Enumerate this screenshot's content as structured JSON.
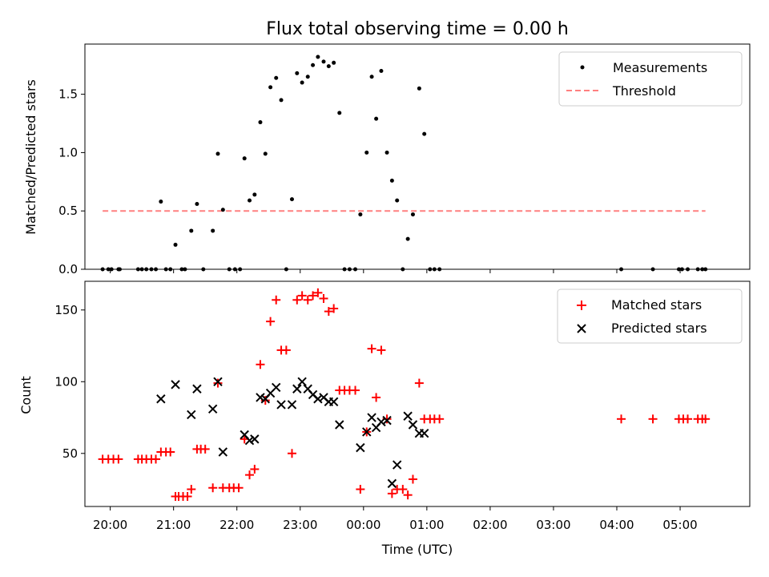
{
  "chart_data": [
    {
      "type": "scatter",
      "panel": "top",
      "title": "Flux total observing time = 0.00 h",
      "xlabel": "",
      "ylabel": "Matched/Predicted stars",
      "xlim": [
        19.6,
        30.1
      ],
      "ylim": [
        0,
        1.93
      ],
      "yticks": [
        0.0,
        0.5,
        1.0,
        1.5
      ],
      "ytick_labels": [
        "0.0",
        "0.5",
        "1.0",
        "1.5"
      ],
      "legend": {
        "placement": "top-right",
        "entries": [
          "Measurements",
          "Threshold"
        ]
      },
      "threshold": {
        "name": "Threshold",
        "value": 0.5,
        "x_range": [
          19.88,
          29.4
        ],
        "color": "#ff8080"
      },
      "series": [
        {
          "name": "Measurements",
          "color": "#000000",
          "points": [
            [
              19.88,
              0
            ],
            [
              19.97,
              0
            ],
            [
              20.02,
              0
            ],
            [
              20.13,
              0
            ],
            [
              20.15,
              0
            ],
            [
              20.44,
              0
            ],
            [
              20.5,
              0
            ],
            [
              20.57,
              0
            ],
            [
              20.65,
              0
            ],
            [
              20.72,
              0
            ],
            [
              20.8,
              0.58
            ],
            [
              20.88,
              0
            ],
            [
              20.95,
              0
            ],
            [
              21.03,
              0.21
            ],
            [
              21.13,
              0
            ],
            [
              21.18,
              0
            ],
            [
              21.28,
              0.33
            ],
            [
              21.37,
              0.56
            ],
            [
              21.47,
              0
            ],
            [
              21.62,
              0.33
            ],
            [
              21.7,
              0.99
            ],
            [
              21.78,
              0.51
            ],
            [
              21.88,
              0
            ],
            [
              21.97,
              0
            ],
            [
              22.05,
              0
            ],
            [
              22.12,
              0.95
            ],
            [
              22.2,
              0.59
            ],
            [
              22.28,
              0.64
            ],
            [
              22.37,
              1.26
            ],
            [
              22.45,
              0.99
            ],
            [
              22.53,
              1.56
            ],
            [
              22.62,
              1.64
            ],
            [
              22.7,
              1.45
            ],
            [
              22.78,
              0
            ],
            [
              22.87,
              0.6
            ],
            [
              22.95,
              1.68
            ],
            [
              23.03,
              1.6
            ],
            [
              23.12,
              1.65
            ],
            [
              23.2,
              1.75
            ],
            [
              23.28,
              1.82
            ],
            [
              23.37,
              1.78
            ],
            [
              23.45,
              1.74
            ],
            [
              23.53,
              1.77
            ],
            [
              23.62,
              1.34
            ],
            [
              23.7,
              0
            ],
            [
              23.78,
              0
            ],
            [
              23.87,
              0
            ],
            [
              23.95,
              0.47
            ],
            [
              24.05,
              1.0
            ],
            [
              24.13,
              1.65
            ],
            [
              24.2,
              1.29
            ],
            [
              24.28,
              1.7
            ],
            [
              24.37,
              1.0
            ],
            [
              24.45,
              0.76
            ],
            [
              24.53,
              0.59
            ],
            [
              24.62,
              0
            ],
            [
              24.7,
              0.26
            ],
            [
              24.78,
              0.47
            ],
            [
              24.88,
              1.55
            ],
            [
              24.96,
              1.16
            ],
            [
              25.05,
              0
            ],
            [
              25.12,
              0
            ],
            [
              25.2,
              0
            ],
            [
              28.07,
              0
            ],
            [
              28.57,
              0
            ],
            [
              28.98,
              0
            ],
            [
              29.03,
              0
            ],
            [
              29.12,
              0
            ],
            [
              29.28,
              0
            ],
            [
              29.35,
              0
            ],
            [
              29.4,
              0
            ]
          ]
        }
      ]
    },
    {
      "type": "scatter",
      "panel": "bottom",
      "title": "",
      "xlabel": "Time (UTC)",
      "ylabel": "Count",
      "xlim": [
        19.6,
        30.1
      ],
      "ylim": [
        13,
        170
      ],
      "yticks": [
        50,
        100,
        150
      ],
      "ytick_labels": [
        "50",
        "100",
        "150"
      ],
      "xticks": [
        20,
        21,
        22,
        23,
        24,
        25,
        26,
        27,
        28,
        29
      ],
      "xtick_labels": [
        "20:00",
        "21:00",
        "22:00",
        "23:00",
        "00:00",
        "01:00",
        "02:00",
        "03:00",
        "04:00",
        "05:00"
      ],
      "legend": {
        "placement": "top-right",
        "entries": [
          "Matched stars",
          "Predicted stars"
        ]
      },
      "series": [
        {
          "name": "Matched stars",
          "marker": "plus",
          "color": "#ff0000",
          "points": [
            [
              19.88,
              46
            ],
            [
              19.97,
              46
            ],
            [
              20.05,
              46
            ],
            [
              20.13,
              46
            ],
            [
              20.44,
              46
            ],
            [
              20.5,
              46
            ],
            [
              20.57,
              46
            ],
            [
              20.65,
              46
            ],
            [
              20.72,
              46
            ],
            [
              20.8,
              51
            ],
            [
              20.88,
              51
            ],
            [
              20.95,
              51
            ],
            [
              21.03,
              20
            ],
            [
              21.08,
              20
            ],
            [
              21.15,
              20
            ],
            [
              21.22,
              20
            ],
            [
              21.28,
              25
            ],
            [
              21.37,
              53
            ],
            [
              21.43,
              53
            ],
            [
              21.5,
              53
            ],
            [
              21.62,
              26
            ],
            [
              21.7,
              99
            ],
            [
              21.78,
              26
            ],
            [
              21.88,
              26
            ],
            [
              21.95,
              26
            ],
            [
              22.03,
              26
            ],
            [
              22.12,
              60
            ],
            [
              22.2,
              35
            ],
            [
              22.28,
              39
            ],
            [
              22.37,
              112
            ],
            [
              22.45,
              87
            ],
            [
              22.53,
              142
            ],
            [
              22.62,
              157
            ],
            [
              22.7,
              122
            ],
            [
              22.78,
              122
            ],
            [
              22.87,
              50
            ],
            [
              22.95,
              157
            ],
            [
              23.03,
              160
            ],
            [
              23.12,
              157
            ],
            [
              23.2,
              160
            ],
            [
              23.28,
              162
            ],
            [
              23.37,
              158
            ],
            [
              23.45,
              149
            ],
            [
              23.53,
              151
            ],
            [
              23.62,
              94
            ],
            [
              23.7,
              94
            ],
            [
              23.78,
              94
            ],
            [
              23.87,
              94
            ],
            [
              23.95,
              25
            ],
            [
              24.05,
              65
            ],
            [
              24.13,
              123
            ],
            [
              24.2,
              89
            ],
            [
              24.28,
              122
            ],
            [
              24.37,
              74
            ],
            [
              24.45,
              22
            ],
            [
              24.53,
              25
            ],
            [
              24.62,
              25
            ],
            [
              24.7,
              21
            ],
            [
              24.78,
              32
            ],
            [
              24.88,
              99
            ],
            [
              24.96,
              74
            ],
            [
              25.05,
              74
            ],
            [
              25.12,
              74
            ],
            [
              25.2,
              74
            ],
            [
              28.07,
              74
            ],
            [
              28.57,
              74
            ],
            [
              28.98,
              74
            ],
            [
              29.05,
              74
            ],
            [
              29.12,
              74
            ],
            [
              29.28,
              74
            ],
            [
              29.35,
              74
            ],
            [
              29.4,
              74
            ]
          ]
        },
        {
          "name": "Predicted stars",
          "marker": "x",
          "color": "#000000",
          "points": [
            [
              20.8,
              88
            ],
            [
              21.03,
              98
            ],
            [
              21.28,
              77
            ],
            [
              21.37,
              95
            ],
            [
              21.62,
              81
            ],
            [
              21.7,
              100
            ],
            [
              21.78,
              51
            ],
            [
              22.12,
              63
            ],
            [
              22.2,
              59
            ],
            [
              22.28,
              60
            ],
            [
              22.37,
              89
            ],
            [
              22.45,
              88
            ],
            [
              22.53,
              92
            ],
            [
              22.62,
              96
            ],
            [
              22.7,
              84
            ],
            [
              22.87,
              84
            ],
            [
              22.95,
              95
            ],
            [
              23.03,
              100
            ],
            [
              23.12,
              95
            ],
            [
              23.2,
              91
            ],
            [
              23.28,
              88
            ],
            [
              23.37,
              89
            ],
            [
              23.45,
              86
            ],
            [
              23.53,
              86
            ],
            [
              23.62,
              70
            ],
            [
              23.95,
              54
            ],
            [
              24.05,
              65
            ],
            [
              24.13,
              75
            ],
            [
              24.2,
              68
            ],
            [
              24.28,
              72
            ],
            [
              24.37,
              73
            ],
            [
              24.45,
              29
            ],
            [
              24.53,
              42
            ],
            [
              24.7,
              76
            ],
            [
              24.78,
              70
            ],
            [
              24.88,
              64
            ],
            [
              24.96,
              64
            ]
          ]
        }
      ]
    }
  ]
}
